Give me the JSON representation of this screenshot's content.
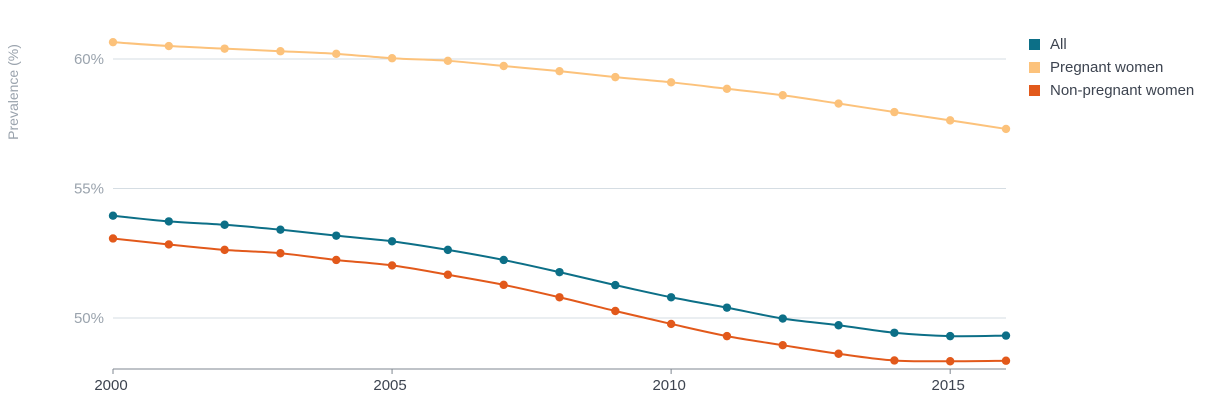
{
  "chart_data": {
    "type": "line",
    "ylabel": "Prevalence (%)",
    "xlabel": "",
    "title": "",
    "x": [
      2000,
      2001,
      2002,
      2003,
      2004,
      2005,
      2006,
      2007,
      2008,
      2009,
      2010,
      2011,
      2012,
      2013,
      2014,
      2015,
      2016
    ],
    "x_ticks": [
      2000,
      2005,
      2010,
      2015
    ],
    "x_tick_labels": [
      "2000",
      "2005",
      "2010",
      "2015"
    ],
    "y_ticks": [
      50,
      55,
      60
    ],
    "y_tick_labels": [
      "50%",
      "55%",
      "60%"
    ],
    "ylim": [
      48,
      62.3
    ],
    "xlim": [
      2000,
      2016
    ],
    "grid": true,
    "legend_position": "top-right",
    "series": [
      {
        "name": "All",
        "color": "#0c6f87",
        "values": [
          53.95,
          53.73,
          53.6,
          53.41,
          53.18,
          52.96,
          52.63,
          52.24,
          51.77,
          51.27,
          50.8,
          50.4,
          49.98,
          49.72,
          49.43,
          49.3,
          49.32
        ]
      },
      {
        "name": "Pregnant women",
        "color": "#fcc27b",
        "values": [
          60.65,
          60.5,
          60.4,
          60.3,
          60.2,
          60.03,
          59.93,
          59.73,
          59.53,
          59.3,
          59.1,
          58.85,
          58.6,
          58.28,
          57.95,
          57.63,
          57.3
        ]
      },
      {
        "name": "Non-pregnant women",
        "color": "#e2591b",
        "values": [
          53.07,
          52.84,
          52.63,
          52.5,
          52.24,
          52.03,
          51.67,
          51.28,
          50.8,
          50.27,
          49.77,
          49.3,
          48.95,
          48.62,
          48.36,
          48.33,
          48.35
        ]
      }
    ]
  }
}
